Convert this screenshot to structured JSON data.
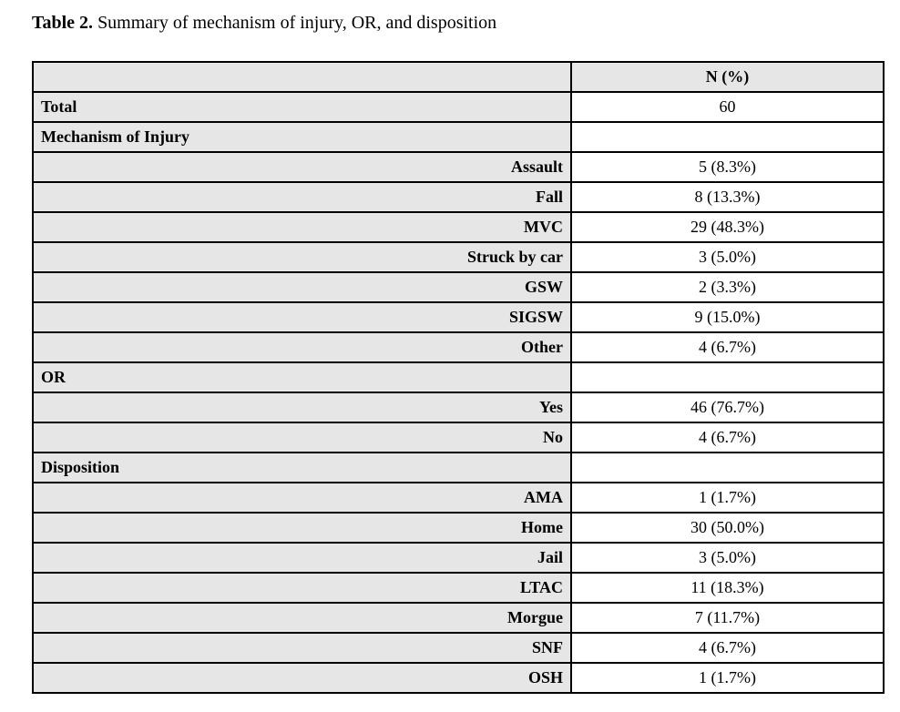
{
  "caption": {
    "label": "Table 2.",
    "text": " Summary of mechanism of injury, OR, and disposition"
  },
  "table": {
    "columns": {
      "label_header": "",
      "value_header": "N (%)"
    },
    "rows": [
      {
        "label": "Total",
        "value": "60",
        "indent": "section"
      },
      {
        "label": "Mechanism of Injury",
        "value": "",
        "indent": "section"
      },
      {
        "label": "Assault",
        "value": "5 (8.3%)",
        "indent": "item"
      },
      {
        "label": "Fall",
        "value": "8 (13.3%)",
        "indent": "item"
      },
      {
        "label": "MVC",
        "value": "29 (48.3%)",
        "indent": "item"
      },
      {
        "label": "Struck by car",
        "value": "3 (5.0%)",
        "indent": "item"
      },
      {
        "label": "GSW",
        "value": "2 (3.3%)",
        "indent": "item"
      },
      {
        "label": "SIGSW",
        "value": "9 (15.0%)",
        "indent": "item"
      },
      {
        "label": "Other",
        "value": "4 (6.7%)",
        "indent": "item"
      },
      {
        "label": "OR",
        "value": "",
        "indent": "section"
      },
      {
        "label": "Yes",
        "value": "46 (76.7%)",
        "indent": "item"
      },
      {
        "label": "No",
        "value": "4 (6.7%)",
        "indent": "item"
      },
      {
        "label": "Disposition",
        "value": "",
        "indent": "section"
      },
      {
        "label": "AMA",
        "value": "1 (1.7%)",
        "indent": "item"
      },
      {
        "label": "Home",
        "value": "30 (50.0%)",
        "indent": "item"
      },
      {
        "label": "Jail",
        "value": "3 (5.0%)",
        "indent": "item"
      },
      {
        "label": "LTAC",
        "value": "11 (18.3%)",
        "indent": "item"
      },
      {
        "label": "Morgue",
        "value": "7 (11.7%)",
        "indent": "item"
      },
      {
        "label": "SNF",
        "value": "4 (6.7%)",
        "indent": "item"
      },
      {
        "label": "OSH",
        "value": "1 (1.7%)",
        "indent": "item"
      }
    ]
  },
  "colors": {
    "row_shade": "#e6e6e6",
    "border": "#000000",
    "text": "#000000",
    "value_background": "#ffffff"
  }
}
